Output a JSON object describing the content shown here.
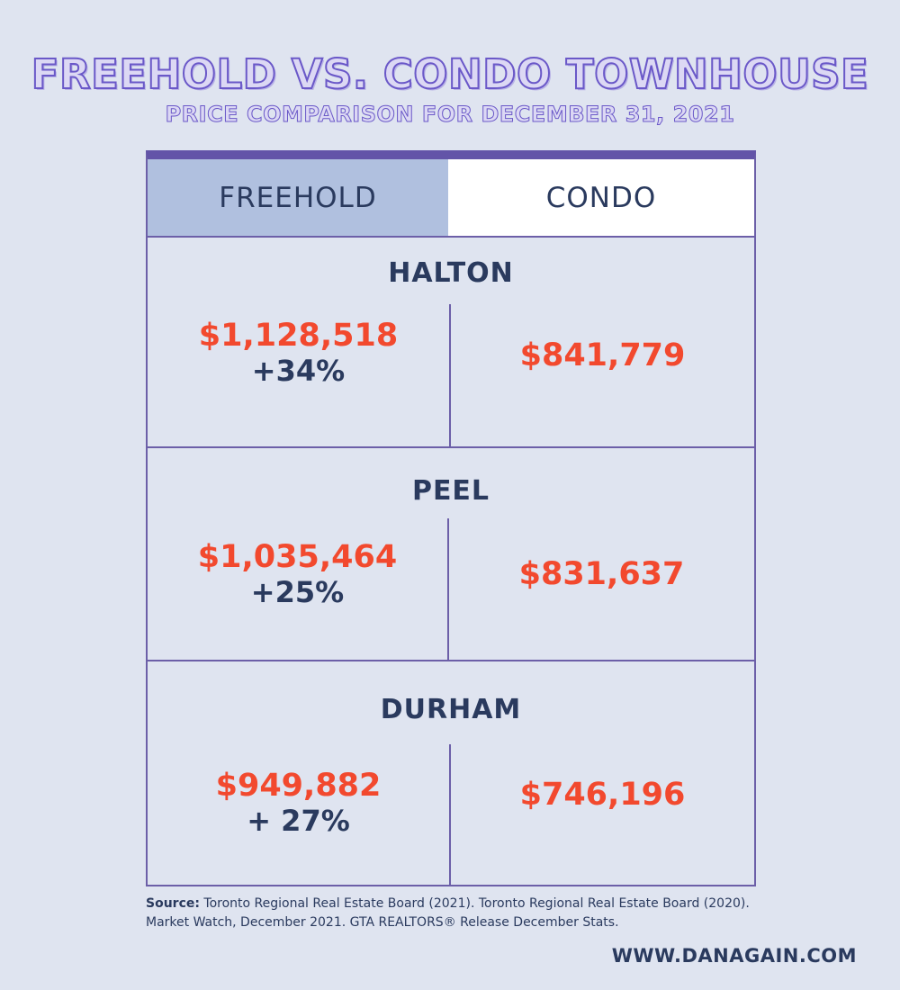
{
  "title": "FREEHOLD VS. CONDO TOWNHOUSE",
  "subtitle": "PRICE COMPARISON FOR DECEMBER 31, 2021",
  "columns": {
    "freehold": "FREEHOLD",
    "condo": "CONDO"
  },
  "regions": [
    {
      "name": "HALTON",
      "freehold_price": "$1,128,518",
      "freehold_change": "+34%",
      "condo_price": "$841,779"
    },
    {
      "name": "PEEL",
      "freehold_price": "$1,035,464",
      "freehold_change": "+25%",
      "condo_price": "$831,637"
    },
    {
      "name": "DURHAM",
      "freehold_price": "$949,882",
      "freehold_change": "+ 27%",
      "condo_price": "$746,196"
    }
  ],
  "source": {
    "label": "Source:",
    "text": "Toronto Regional Real Estate Board (2021). Toronto Regional Real Estate Board (2020). Market Watch, December 2021. GTA REALTORS® Release December Stats."
  },
  "website": "WWW.DANAGAIN.COM",
  "colors": {
    "background": "#dfe4f0",
    "accent": "#6354a8",
    "price": "#f2492e",
    "text": "#2a3a5e",
    "freehold_header": "#b0c0df"
  }
}
